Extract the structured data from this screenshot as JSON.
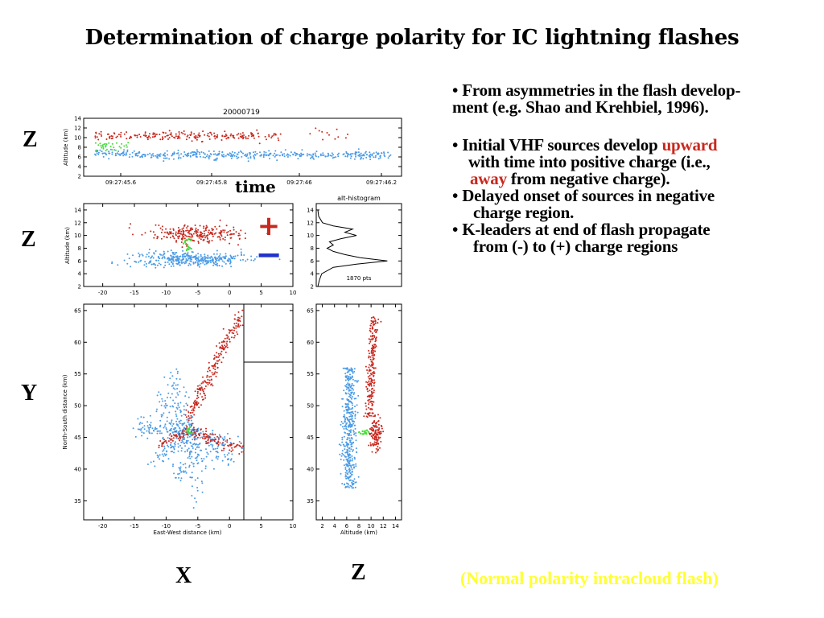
{
  "title": "Determination of charge polarity for IC lightning flashes",
  "axis_labels": {
    "row1": "Z",
    "row2": "Z",
    "row3": "Y",
    "bottom_x": "X",
    "bottom_z": "Z",
    "time": "time"
  },
  "bullets": {
    "b1_line1": "•  From asymmetries in the flash develop-",
    "b1_line2": "ment (e.g. Shao and Krehbiel, 1996).",
    "b2_line1_a": "•  Initial VHF sources develop  ",
    "b2_line1_b": "upward",
    "b2_line2": "with time into positive charge (i.e.,",
    "b2_line3_a": "away",
    "b2_line3_b": " from  negative charge).",
    "b3_line1": "•  Delayed onset of sources in negative",
    "b3_line2": "charge region.",
    "b4_line1": "•  K-leaders at end of flash propagate",
    "b4_line2": "from (-) to (+) charge regions"
  },
  "caption": "(Normal polarity intracloud flash)",
  "colors": {
    "positive": "#c8281e",
    "negative": "#4a9be6",
    "initial": "#44dd33",
    "caption": "#ffff33",
    "minus_bar": "#2233cc"
  },
  "chart_data": [
    {
      "type": "scatter",
      "title": "20000719",
      "xlabel": "",
      "ylabel": "Altitude (km)",
      "x_tick_labels": [
        "09:27:45.6",
        "09:27:45.8",
        "09:27:46",
        "09:27:46.2"
      ],
      "y_ticks": [
        2,
        4,
        6,
        8,
        10,
        12,
        14
      ],
      "ylim": [
        2,
        14
      ],
      "series": [
        {
          "color": "positive",
          "altitude_range": [
            9.5,
            11.5
          ]
        },
        {
          "color": "negative",
          "altitude_range": [
            5.5,
            7.5
          ]
        },
        {
          "color": "initial",
          "altitude_range": [
            7,
            10
          ]
        }
      ]
    },
    {
      "type": "scatter",
      "xlabel": "",
      "ylabel": "Altitude (km)",
      "x_ticks": [
        -20,
        -15,
        -10,
        -5,
        0,
        5,
        10
      ],
      "y_ticks": [
        2,
        4,
        6,
        8,
        10,
        12,
        14
      ],
      "xlim": [
        -23,
        10
      ],
      "ylim": [
        2,
        15
      ],
      "plus_symbol": "+",
      "minus_symbol": "−"
    },
    {
      "type": "line",
      "title": "alt-histogram",
      "annotation": "1870 pts",
      "y_ticks": [
        2,
        4,
        6,
        8,
        10,
        12,
        14
      ],
      "ylim": [
        2,
        15
      ],
      "profile": [
        [
          2,
          0
        ],
        [
          3,
          0.02
        ],
        [
          4,
          0.05
        ],
        [
          5,
          0.2
        ],
        [
          5.5,
          0.5
        ],
        [
          6,
          0.9
        ],
        [
          6.5,
          0.55
        ],
        [
          7,
          0.35
        ],
        [
          7.5,
          0.2
        ],
        [
          8,
          0.12
        ],
        [
          8.5,
          0.2
        ],
        [
          9,
          0.15
        ],
        [
          9.5,
          0.3
        ],
        [
          10,
          0.5
        ],
        [
          10.5,
          0.35
        ],
        [
          11,
          0.45
        ],
        [
          11.5,
          0.2
        ],
        [
          12,
          0.06
        ],
        [
          13,
          0.01
        ],
        [
          14,
          0
        ]
      ]
    },
    {
      "type": "scatter",
      "xlabel": "East-West distance (km)",
      "ylabel": "North-South distance (km)",
      "x_ticks": [
        -20,
        -15,
        -10,
        -5,
        0,
        5,
        10
      ],
      "y_ticks": [
        35,
        40,
        45,
        50,
        55,
        60,
        65
      ],
      "xlim": [
        -23,
        10
      ],
      "ylim": [
        32,
        66
      ]
    },
    {
      "type": "scatter",
      "xlabel": "Altitude (km)",
      "x_ticks": [
        2,
        4,
        6,
        8,
        10,
        12,
        14
      ],
      "y_ticks": [
        35,
        40,
        45,
        50,
        55,
        60,
        65
      ],
      "xlim": [
        1,
        15
      ],
      "ylim": [
        32,
        66
      ]
    }
  ]
}
